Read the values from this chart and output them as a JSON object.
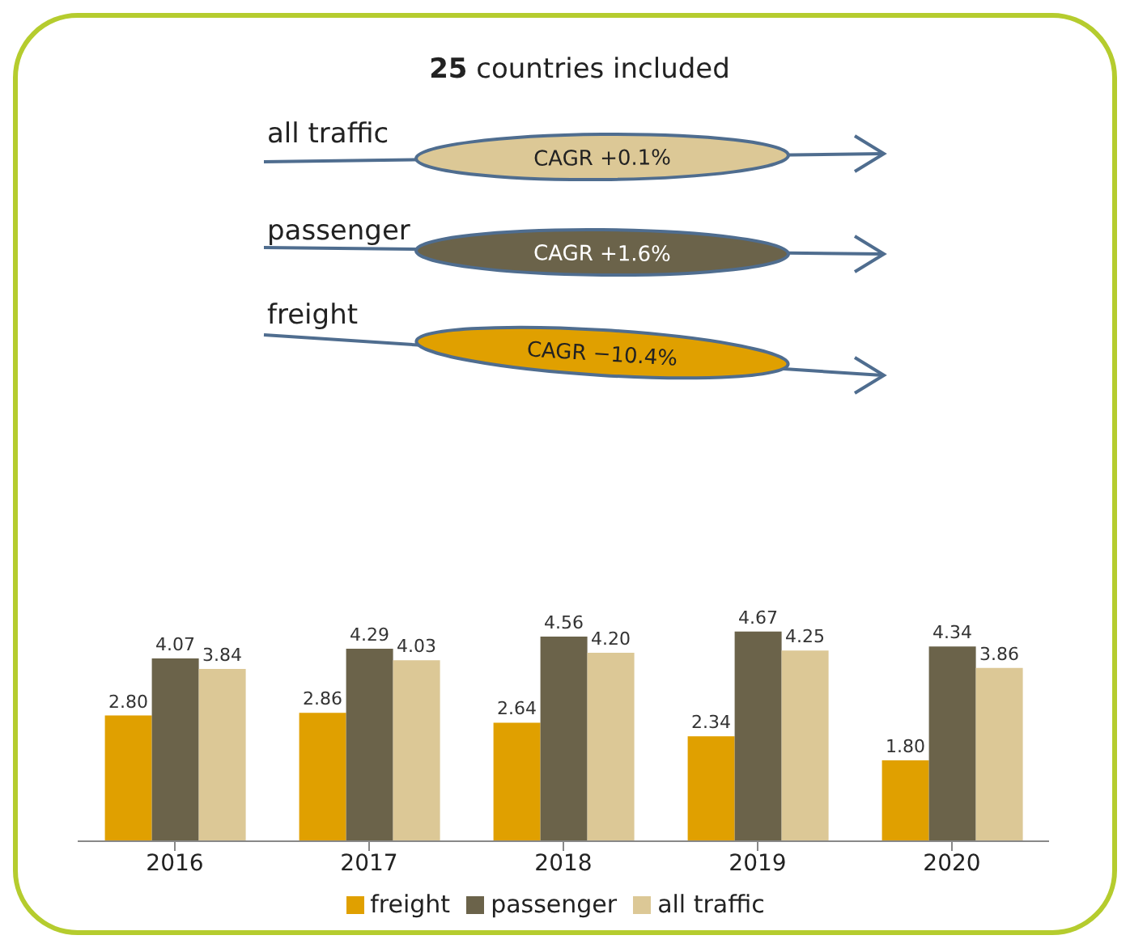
{
  "chart_data": {
    "type": "bar",
    "title": "25 countries included",
    "categories": [
      "2016",
      "2017",
      "2018",
      "2019",
      "2020"
    ],
    "series": [
      {
        "name": "freight",
        "color": "#e0a000",
        "values": [
          2.8,
          2.86,
          2.64,
          2.34,
          1.8
        ],
        "value_labels": [
          "2.80",
          "2.86",
          "2.64",
          "2.34",
          "1.80"
        ]
      },
      {
        "name": "passenger",
        "color": "#6b634a",
        "values": [
          4.07,
          4.29,
          4.56,
          4.67,
          4.34
        ],
        "value_labels": [
          "4.07",
          "4.29",
          "4.56",
          "4.67",
          "4.34"
        ]
      },
      {
        "name": "all traffic",
        "color": "#dcc896",
        "values": [
          3.84,
          4.03,
          4.2,
          4.25,
          3.86
        ],
        "value_labels": [
          "3.84",
          "4.03",
          "4.20",
          "4.25",
          "3.86"
        ]
      }
    ],
    "annotations": [
      "all traffic",
      "CAGR +0.1%",
      "passenger",
      "CAGR +1.6%",
      "freight",
      "CAGR −10.4%"
    ],
    "legend": "bottom",
    "grid": false
  }
}
